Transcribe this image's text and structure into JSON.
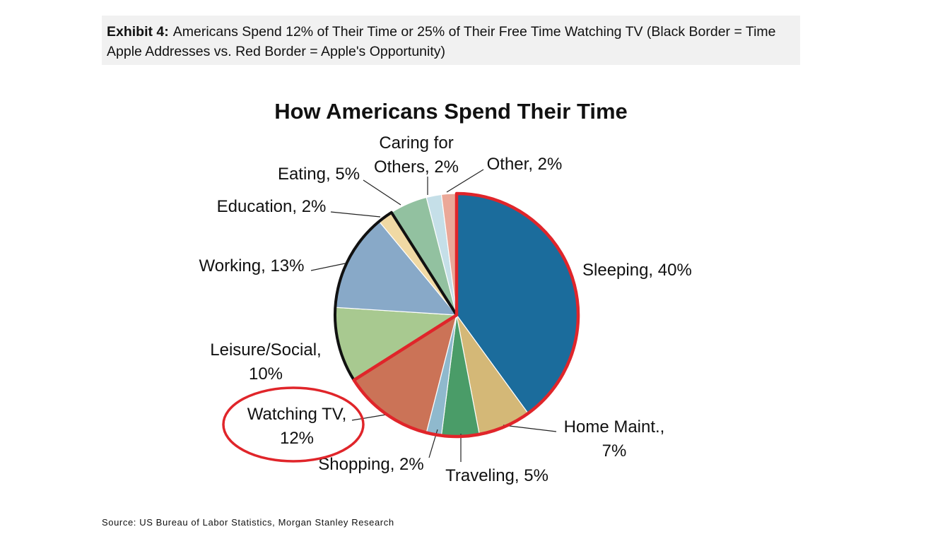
{
  "exhibit": {
    "label": "Exhibit 4:",
    "caption": "Americans Spend 12% of Their Time or 25% of Their Free Time Watching TV (Black Border = Time Apple Addresses vs. Red Border = Apple's Opportunity)"
  },
  "source": "Source: US Bureau of Labor Statistics, Morgan Stanley Research",
  "chart_data": {
    "type": "pie",
    "title": "How Americans Spend Their Time",
    "slices": [
      {
        "name": "Sleeping",
        "value": 40,
        "color": "#1b6c9c",
        "label": [
          "Sleeping, 40%"
        ]
      },
      {
        "name": "Home Maint.",
        "value": 7,
        "color": "#d4b877",
        "label": [
          "Home Maint.,",
          "7%"
        ]
      },
      {
        "name": "Traveling",
        "value": 5,
        "color": "#4a9c68",
        "label": [
          "Traveling, 5%"
        ]
      },
      {
        "name": "Shopping",
        "value": 2,
        "color": "#8fb9cd",
        "label": [
          "Shopping, 2%"
        ]
      },
      {
        "name": "Watching TV",
        "value": 12,
        "color": "#cb7357",
        "label": [
          "Watching TV,",
          "12%"
        ]
      },
      {
        "name": "Leisure/Social",
        "value": 10,
        "color": "#a8c990",
        "label": [
          "Leisure/Social,",
          "10%"
        ]
      },
      {
        "name": "Working",
        "value": 13,
        "color": "#88a9c8",
        "label": [
          "Working, 13%"
        ]
      },
      {
        "name": "Education",
        "value": 2,
        "color": "#f0d9a4",
        "label": [
          "Education, 2%"
        ]
      },
      {
        "name": "Eating",
        "value": 5,
        "color": "#92c1a0",
        "label": [
          "Eating, 5%"
        ]
      },
      {
        "name": "Caring for Others",
        "value": 2,
        "color": "#c5dfe8",
        "label": [
          "Caring for",
          "Others, 2%"
        ]
      },
      {
        "name": "Other",
        "value": 2,
        "color": "#eba898",
        "label": [
          "Other, 2%"
        ]
      }
    ],
    "red_border_group": [
      "Sleeping",
      "Home Maint.",
      "Traveling",
      "Shopping",
      "Watching TV"
    ],
    "black_border_group": [
      "Leisure/Social",
      "Working",
      "Education"
    ],
    "highlighted_slice": "Watching TV",
    "colors": {
      "red_border": "#e0252a",
      "black_border": "#111111"
    }
  }
}
